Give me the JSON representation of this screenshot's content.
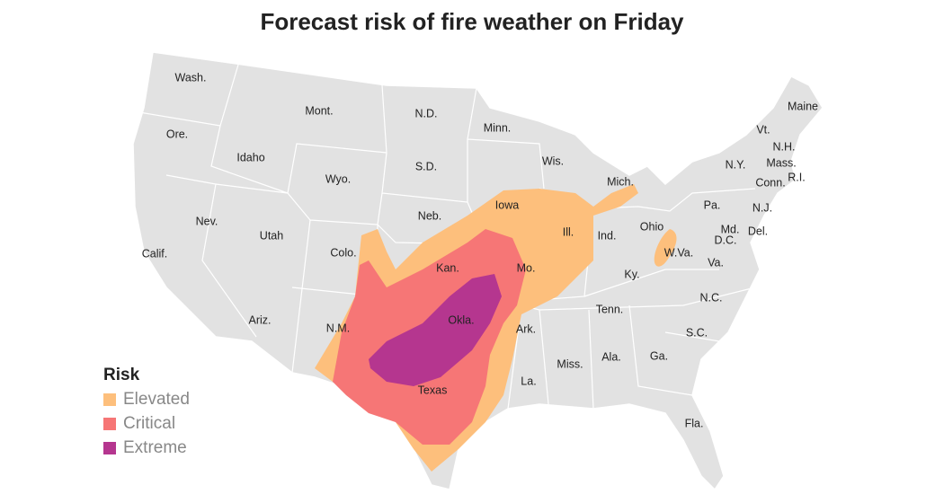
{
  "title": "Forecast risk of fire weather on Friday",
  "legend": {
    "title": "Risk",
    "items": [
      {
        "label": "Elevated",
        "color": "#fdbf7c"
      },
      {
        "label": "Critical",
        "color": "#f67676"
      },
      {
        "label": "Extreme",
        "color": "#b5368f"
      }
    ]
  },
  "states": [
    {
      "label": "Wash."
    },
    {
      "label": "Mont."
    },
    {
      "label": "N.D."
    },
    {
      "label": "Minn."
    },
    {
      "label": "Maine"
    },
    {
      "label": "Vt."
    },
    {
      "label": "N.H."
    },
    {
      "label": "Ore."
    },
    {
      "label": "Idaho"
    },
    {
      "label": "S.D."
    },
    {
      "label": "Wis."
    },
    {
      "label": "N.Y."
    },
    {
      "label": "Mass."
    },
    {
      "label": "R.I."
    },
    {
      "label": "Conn."
    },
    {
      "label": "Wyo."
    },
    {
      "label": "Mich."
    },
    {
      "label": "Iowa"
    },
    {
      "label": "Pa."
    },
    {
      "label": "N.J."
    },
    {
      "label": "Nev."
    },
    {
      "label": "Neb."
    },
    {
      "label": "Ohio"
    },
    {
      "label": "Md."
    },
    {
      "label": "Del."
    },
    {
      "label": "Ill."
    },
    {
      "label": "Utah"
    },
    {
      "label": "Ind."
    },
    {
      "label": "D.C."
    },
    {
      "label": "Calif."
    },
    {
      "label": "Colo."
    },
    {
      "label": "W.Va."
    },
    {
      "label": "Kan."
    },
    {
      "label": "Mo."
    },
    {
      "label": "Va."
    },
    {
      "label": "Ky."
    },
    {
      "label": "N.C."
    },
    {
      "label": "Tenn."
    },
    {
      "label": "Ariz."
    },
    {
      "label": "N.M."
    },
    {
      "label": "Okla."
    },
    {
      "label": "Ark."
    },
    {
      "label": "S.C."
    },
    {
      "label": "Miss."
    },
    {
      "label": "Ala."
    },
    {
      "label": "Ga."
    },
    {
      "label": "La."
    },
    {
      "label": "Texas"
    },
    {
      "label": "Fla."
    }
  ]
}
